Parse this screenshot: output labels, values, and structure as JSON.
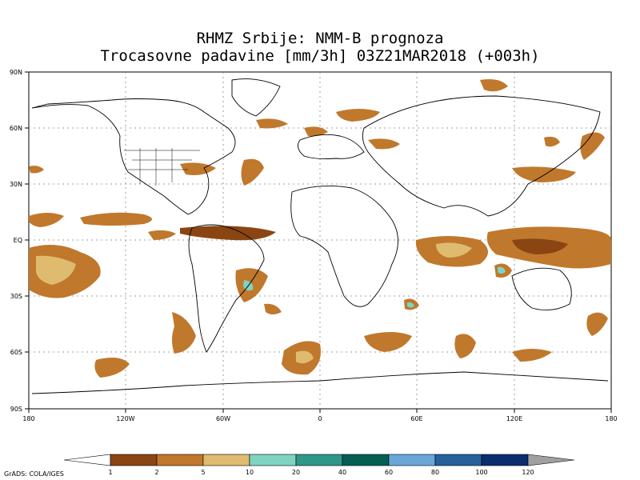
{
  "title_line1": "RHMZ Srbije: NMM-B prognoza",
  "title_line2": "Trocasovne padavine [mm/3h] 03Z21MAR2018 (+003h)",
  "lat_labels": [
    "90N",
    "60N",
    "30N",
    "EQ",
    "30S",
    "60S",
    "90S"
  ],
  "lon_labels": [
    "180",
    "120W",
    "60W",
    "0",
    "60E",
    "120E",
    "180"
  ],
  "legend": {
    "levels": [
      "1",
      "2",
      "5",
      "10",
      "20",
      "40",
      "60",
      "80",
      "100",
      "120"
    ],
    "colors": [
      "#ffffff",
      "#8b4513",
      "#c0782c",
      "#dfbb70",
      "#7fd4c1",
      "#2f978a",
      "#045e52",
      "#6aa6d8",
      "#26619c",
      "#0b2c6e",
      "#a0a0a0"
    ]
  },
  "credit": "GrADS: COLA/IGES"
}
